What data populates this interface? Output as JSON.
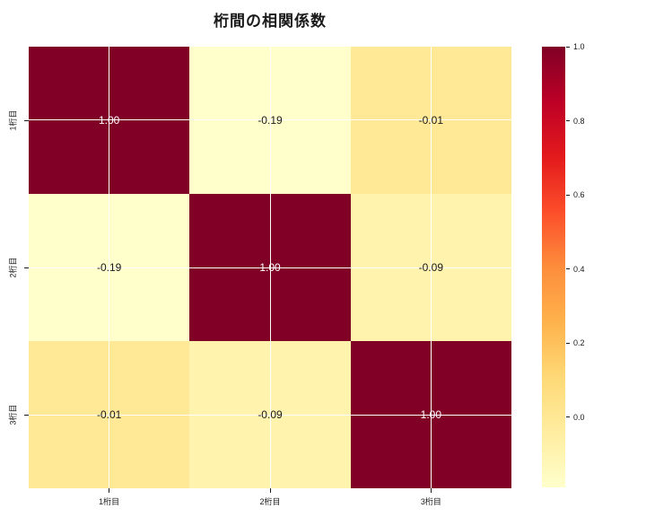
{
  "title": "桁間の相関係数",
  "chart_data": {
    "type": "heatmap",
    "title": "桁間の相関係数",
    "x_categories": [
      "1桁目",
      "2桁目",
      "3桁目"
    ],
    "y_categories": [
      "1桁目",
      "2桁目",
      "3桁目"
    ],
    "matrix": [
      [
        1.0,
        -0.19,
        -0.01
      ],
      [
        -0.19,
        1.0,
        -0.09
      ],
      [
        -0.01,
        -0.09,
        1.0
      ]
    ],
    "cell_labels": [
      [
        "1.00",
        "-0.19",
        "-0.01"
      ],
      [
        "-0.19",
        "1.00",
        "-0.09"
      ],
      [
        "-0.01",
        "-0.09",
        "1.00"
      ]
    ],
    "vmin": -0.19,
    "vmax": 1.0,
    "colormap": {
      "name": "YlOrRd",
      "stops": [
        "#ffffcc",
        "#ffeda0",
        "#fed976",
        "#feb24c",
        "#fd8d3c",
        "#fc4e2a",
        "#e31a1c",
        "#bd0026",
        "#800026"
      ]
    },
    "colorbar": {
      "position": "right",
      "tick_labels": [
        "1.0",
        "0.8",
        "0.6",
        "0.4",
        "0.2",
        "0.0"
      ],
      "tick_values": [
        1.0,
        0.8,
        0.6,
        0.4,
        0.2,
        0.0
      ]
    },
    "grid": true,
    "grid_color": "#ffffff",
    "annotation_colors": {
      "on_dark": "#ffffff",
      "on_light": "#1a1a1a"
    },
    "background": "#ffffff"
  }
}
